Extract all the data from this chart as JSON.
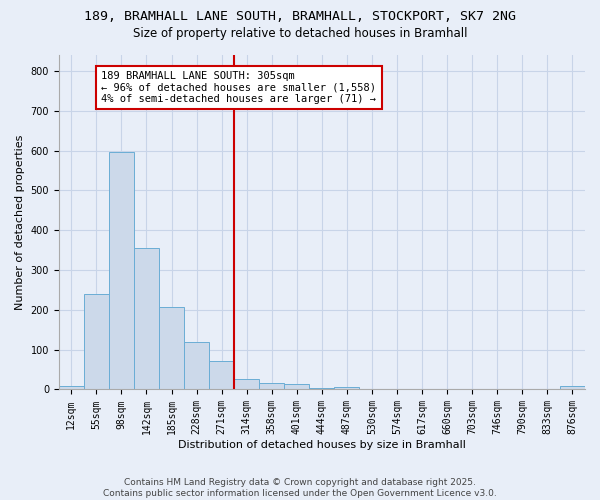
{
  "title_line1": "189, BRAMHALL LANE SOUTH, BRAMHALL, STOCKPORT, SK7 2NG",
  "title_line2": "Size of property relative to detached houses in Bramhall",
  "xlabel": "Distribution of detached houses by size in Bramhall",
  "ylabel": "Number of detached properties",
  "bin_labels": [
    "12sqm",
    "55sqm",
    "98sqm",
    "142sqm",
    "185sqm",
    "228sqm",
    "271sqm",
    "314sqm",
    "358sqm",
    "401sqm",
    "444sqm",
    "487sqm",
    "530sqm",
    "574sqm",
    "617sqm",
    "660sqm",
    "703sqm",
    "746sqm",
    "790sqm",
    "833sqm",
    "876sqm"
  ],
  "bar_heights": [
    8,
    240,
    597,
    355,
    207,
    118,
    71,
    27,
    17,
    13,
    4,
    5,
    0,
    0,
    0,
    0,
    0,
    0,
    0,
    0,
    8
  ],
  "bar_color": "#ccd9ea",
  "bar_edge_color": "#6aadd5",
  "grid_color": "#c8d4e8",
  "background_color": "#e8eef8",
  "vline_color": "#cc0000",
  "annotation_text": "189 BRAMHALL LANE SOUTH: 305sqm\n← 96% of detached houses are smaller (1,558)\n4% of semi-detached houses are larger (71) →",
  "annotation_box_color": "#ffffff",
  "annotation_box_edge_color": "#cc0000",
  "footer_text": "Contains HM Land Registry data © Crown copyright and database right 2025.\nContains public sector information licensed under the Open Government Licence v3.0.",
  "ylim": [
    0,
    840
  ],
  "yticks": [
    0,
    100,
    200,
    300,
    400,
    500,
    600,
    700,
    800
  ],
  "title_fontsize": 9.5,
  "subtitle_fontsize": 8.5,
  "axis_label_fontsize": 8,
  "tick_fontsize": 7,
  "annotation_fontsize": 7.5,
  "footer_fontsize": 6.5
}
